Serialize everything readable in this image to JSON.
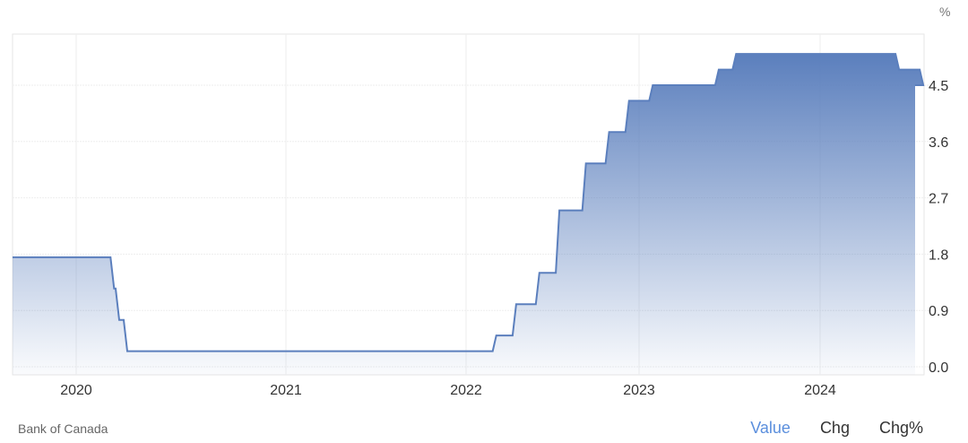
{
  "chart_data": {
    "type": "area",
    "title": "",
    "xlabel": "",
    "ylabel": "%",
    "ylim": [
      0,
      5.3
    ],
    "x_ticks": [
      "2020",
      "2021",
      "2022",
      "2023",
      "2024"
    ],
    "y_ticks": [
      0.0,
      0.9,
      1.8,
      2.7,
      3.6,
      4.5
    ],
    "y_tick_labels": [
      "0.0",
      "0.9",
      "1.8",
      "2.7",
      "3.6",
      "4.5"
    ],
    "grid": true,
    "series": [
      {
        "steps": [
          {
            "date": "2019-09-10",
            "value": 1.75
          },
          {
            "date": "2020-03-04",
            "value": 1.25
          },
          {
            "date": "2020-03-13",
            "value": 0.75
          },
          {
            "date": "2020-03-27",
            "value": 0.25
          },
          {
            "date": "2022-03-02",
            "value": 0.5
          },
          {
            "date": "2022-04-13",
            "value": 1.0
          },
          {
            "date": "2022-06-01",
            "value": 1.5
          },
          {
            "date": "2022-07-13",
            "value": 2.5
          },
          {
            "date": "2022-09-07",
            "value": 3.25
          },
          {
            "date": "2022-10-26",
            "value": 3.75
          },
          {
            "date": "2022-12-07",
            "value": 4.25
          },
          {
            "date": "2023-01-25",
            "value": 4.5
          },
          {
            "date": "2023-06-07",
            "value": 4.75
          },
          {
            "date": "2023-07-12",
            "value": 5.0
          },
          {
            "date": "2024-06-05",
            "value": 4.75
          },
          {
            "date": "2024-07-24",
            "value": 4.5
          }
        ],
        "end_date": "2024-07-31"
      }
    ],
    "color": "#5b7fbd"
  },
  "footer": {
    "source": "Bank of Canada",
    "tabs": [
      {
        "label": "Value",
        "active": true
      },
      {
        "label": "Chg",
        "active": false
      },
      {
        "label": "Chg%",
        "active": false
      }
    ]
  }
}
